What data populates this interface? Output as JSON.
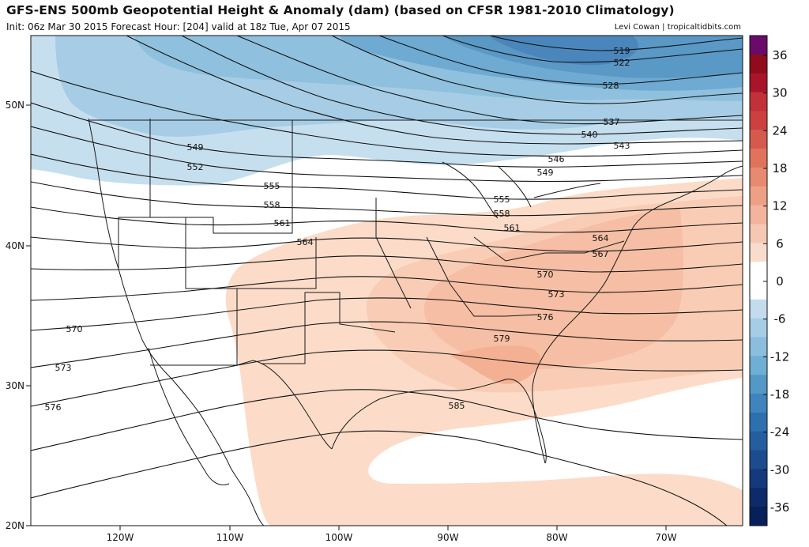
{
  "header": {
    "title": "GFS-ENS 500mb Geopotential Height & Anomaly (dam) (based on CFSR 1981-2010 Climatology)",
    "subtitle": "Init: 06z Mar 30 2015   Forecast Hour: [204]   valid at 18z Tue, Apr 07 2015",
    "credit": "Levi Cowan | tropicaltidbits.com"
  },
  "axes": {
    "lon_labels": [
      "120W",
      "110W",
      "100W",
      "90W",
      "80W",
      "70W"
    ],
    "lat_labels": [
      "50N",
      "40N",
      "30N",
      "20N"
    ]
  },
  "contours": [
    {
      "value": "519"
    },
    {
      "value": "522"
    },
    {
      "value": "528"
    },
    {
      "value": "537"
    },
    {
      "value": "540"
    },
    {
      "value": "543"
    },
    {
      "value": "546"
    },
    {
      "value": "549"
    },
    {
      "value": "549"
    },
    {
      "value": "552"
    },
    {
      "value": "555"
    },
    {
      "value": "555"
    },
    {
      "value": "558"
    },
    {
      "value": "558"
    },
    {
      "value": "561"
    },
    {
      "value": "561"
    },
    {
      "value": "564"
    },
    {
      "value": "564"
    },
    {
      "value": "567"
    },
    {
      "value": "570"
    },
    {
      "value": "570"
    },
    {
      "value": "573"
    },
    {
      "value": "573"
    },
    {
      "value": "576"
    },
    {
      "value": "576"
    },
    {
      "value": "579"
    },
    {
      "value": "585"
    }
  ],
  "colorbar": {
    "labels": [
      "36",
      "30",
      "24",
      "18",
      "12",
      "6",
      "0",
      "-6",
      "-12",
      "-18",
      "-24",
      "-30",
      "-36"
    ],
    "colors": [
      "#6a0a6a",
      "#8e0c1c",
      "#a8142a",
      "#c23038",
      "#cc4040",
      "#d65a4c",
      "#e0735c",
      "#e88a70",
      "#eda084",
      "#f2b49c",
      "#f6c8b4",
      "#fadccc",
      "#ffffff",
      "#ffffff",
      "#c2dcee",
      "#a6cde6",
      "#8bbedd",
      "#6fafd4",
      "#5498c8",
      "#3f84bc",
      "#2e70ae",
      "#245e9e",
      "#1b4c8e",
      "#14397c",
      "#0d2a6a",
      "#07205a"
    ]
  }
}
